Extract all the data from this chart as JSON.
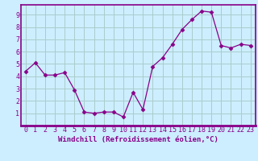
{
  "x": [
    0,
    1,
    2,
    3,
    4,
    5,
    6,
    7,
    8,
    9,
    10,
    11,
    12,
    13,
    14,
    15,
    16,
    17,
    18,
    19,
    20,
    21,
    22,
    23
  ],
  "y": [
    4.4,
    5.1,
    4.1,
    4.1,
    4.3,
    2.9,
    1.1,
    1.0,
    1.1,
    1.1,
    0.7,
    2.7,
    1.3,
    4.8,
    5.5,
    6.6,
    7.8,
    8.6,
    9.3,
    9.2,
    6.5,
    6.3,
    6.6,
    6.5
  ],
  "line_color": "#880088",
  "marker": "D",
  "marker_size": 2.5,
  "bg_color": "#cceeff",
  "grid_color": "#aacccc",
  "xlabel": "Windchill (Refroidissement éolien,°C)",
  "ylabel_ticks": [
    1,
    2,
    3,
    4,
    5,
    6,
    7,
    8,
    9
  ],
  "xlim": [
    -0.5,
    23.5
  ],
  "ylim": [
    0.0,
    9.8
  ],
  "xticks": [
    0,
    1,
    2,
    3,
    4,
    5,
    6,
    7,
    8,
    9,
    10,
    11,
    12,
    13,
    14,
    15,
    16,
    17,
    18,
    19,
    20,
    21,
    22,
    23
  ],
  "xlabel_fontsize": 6.5,
  "tick_fontsize": 6,
  "spine_color": "#880088"
}
